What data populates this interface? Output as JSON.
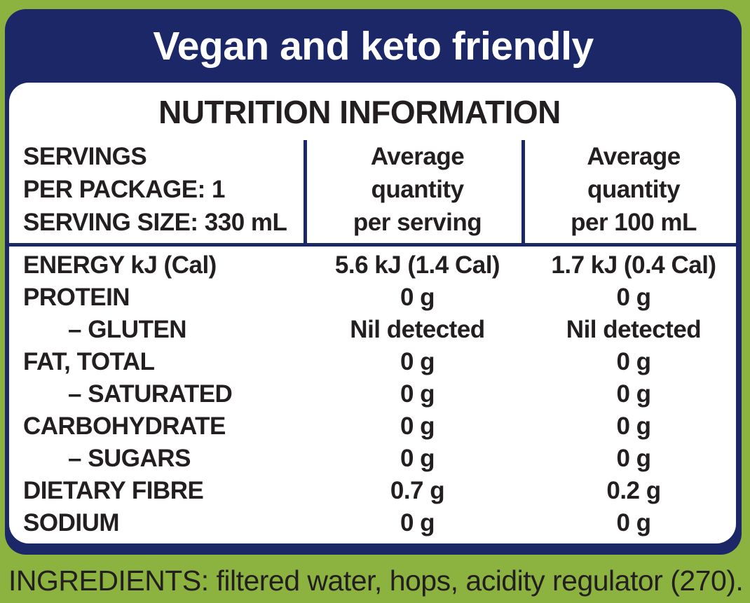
{
  "banner": {
    "text": "Vegan and keto friendly"
  },
  "panel": {
    "title": "NUTRITION INFORMATION",
    "header": {
      "servings_lines": [
        "SERVINGS",
        "PER PACKAGE: 1",
        "SERVING SIZE: 330 mL"
      ],
      "per_serving_lines": [
        "Average",
        "quantity",
        "per serving"
      ],
      "per_100ml_lines": [
        "Average",
        "quantity",
        "per 100 mL"
      ]
    },
    "rows": [
      {
        "label": "ENERGY kJ (Cal)",
        "indent": false,
        "per_serving": "5.6 kJ (1.4 Cal)",
        "per_100ml": "1.7 kJ (0.4 Cal)"
      },
      {
        "label": "PROTEIN",
        "indent": false,
        "per_serving": "0 g",
        "per_100ml": "0 g"
      },
      {
        "label": "– GLUTEN",
        "indent": true,
        "per_serving": "Nil detected",
        "per_100ml": "Nil detected"
      },
      {
        "label": "FAT, TOTAL",
        "indent": false,
        "per_serving": "0 g",
        "per_100ml": "0 g"
      },
      {
        "label": "– SATURATED",
        "indent": true,
        "per_serving": "0 g",
        "per_100ml": "0 g"
      },
      {
        "label": "CARBOHYDRATE",
        "indent": false,
        "per_serving": "0 g",
        "per_100ml": "0 g"
      },
      {
        "label": "– SUGARS",
        "indent": true,
        "per_serving": "0 g",
        "per_100ml": "0 g"
      },
      {
        "label": "DIETARY FIBRE",
        "indent": false,
        "per_serving": "0.7 g",
        "per_100ml": "0.2 g"
      },
      {
        "label": "SODIUM",
        "indent": false,
        "per_serving": "0 g",
        "per_100ml": "0 g"
      }
    ]
  },
  "ingredients": {
    "text": "INGREDIENTS: filtered water, hops, acidity regulator (270)."
  },
  "colors": {
    "background": "#8CB240",
    "navy": "#1B2766",
    "text": "#231F20"
  }
}
